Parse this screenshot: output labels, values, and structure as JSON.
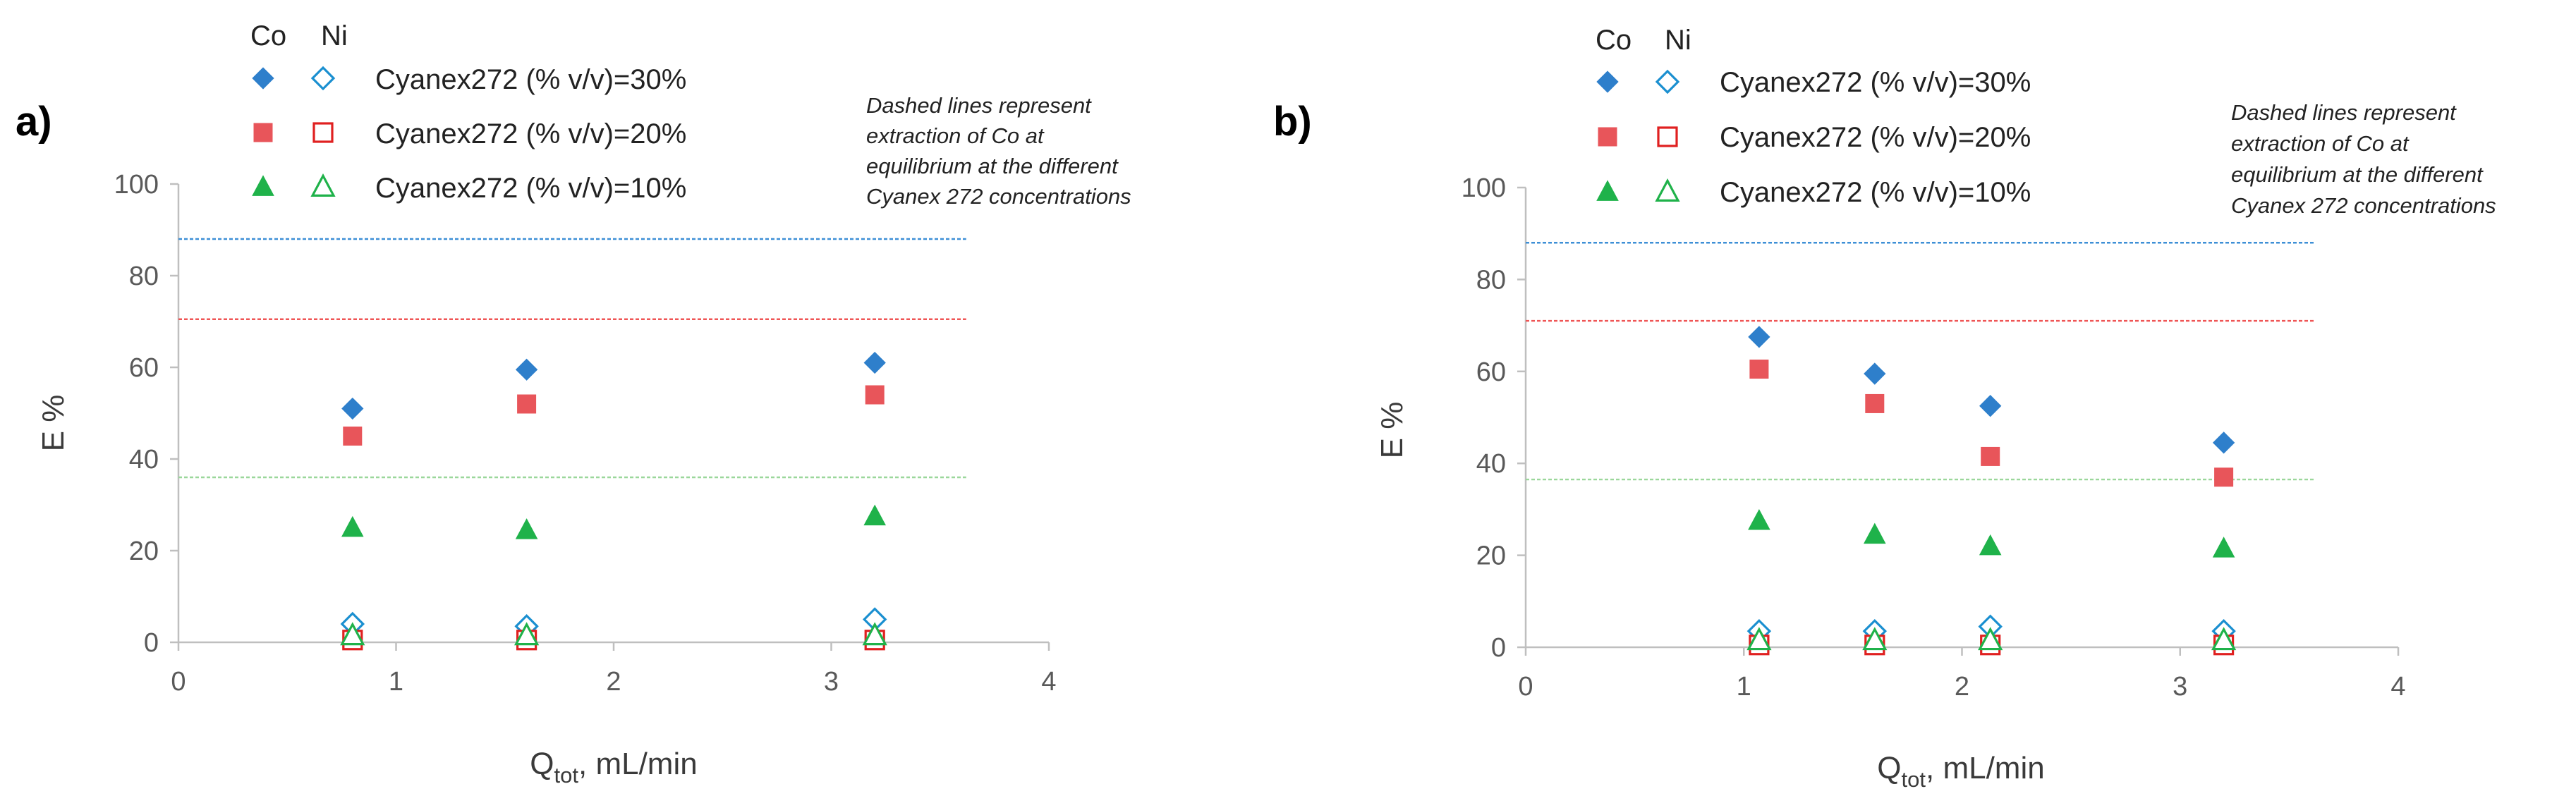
{
  "colors": {
    "c30": "#2e7fcb",
    "c20": "#e8555a",
    "c10": "#1fb24a",
    "ni30": "#1a8fd0",
    "ni20": "#e02020",
    "ni10": "#1fb24a",
    "line30": "#3d8fd6",
    "line20": "#ef5555",
    "line10": "#9bd79b",
    "axis": "#bfbfbf"
  },
  "legend": {
    "co_header": "Co",
    "ni_header": "Ni",
    "entries": [
      {
        "label": "Cyanex272 (% v/v)=30%",
        "series": "30"
      },
      {
        "label": "Cyanex272 (% v/v)=20%",
        "series": "20"
      },
      {
        "label": "Cyanex272 (% v/v)=10%",
        "series": "10"
      }
    ]
  },
  "note_lines": [
    "Dashed lines represent",
    "extraction of Co at",
    "equilibrium at the different",
    "Cyanex 272 concentrations"
  ],
  "chart_data": [
    {
      "type": "scatter",
      "panel_label": "a)",
      "xlabel_main": "Q",
      "xlabel_sub": "tot",
      "xlabel_rest": ", mL/min",
      "ylabel": "E %",
      "xlim": [
        0,
        4
      ],
      "ylim": [
        0,
        100
      ],
      "xticks": [
        0,
        1,
        2,
        3,
        4
      ],
      "yticks": [
        0,
        20,
        40,
        60,
        80,
        100
      ],
      "equilibrium_lines": [
        {
          "series": "30",
          "value": 88,
          "x_end": 3.62
        },
        {
          "series": "20",
          "value": 70.5,
          "x_end": 3.62
        },
        {
          "series": "10",
          "value": 36,
          "x_end": 3.62
        }
      ],
      "series": [
        {
          "name": "Co Cyanex272 30%",
          "key": "c30",
          "marker": "diamond",
          "filled": true,
          "x": [
            0.8,
            1.6,
            3.2
          ],
          "y": [
            51,
            59.5,
            61
          ]
        },
        {
          "name": "Co Cyanex272 20%",
          "key": "c20",
          "marker": "square",
          "filled": true,
          "x": [
            0.8,
            1.6,
            3.2
          ],
          "y": [
            45,
            52,
            54
          ]
        },
        {
          "name": "Co Cyanex272 10%",
          "key": "c10",
          "marker": "triangle",
          "filled": true,
          "x": [
            0.8,
            1.6,
            3.2
          ],
          "y": [
            25,
            24.5,
            27.5
          ]
        },
        {
          "name": "Ni Cyanex272 30%",
          "key": "ni30",
          "marker": "diamond",
          "filled": false,
          "x": [
            0.8,
            1.6,
            3.2
          ],
          "y": [
            4,
            3.5,
            5
          ]
        },
        {
          "name": "Ni Cyanex272 20%",
          "key": "ni20",
          "marker": "square",
          "filled": false,
          "x": [
            0.8,
            1.6,
            3.2
          ],
          "y": [
            0.5,
            0.5,
            0.5
          ]
        },
        {
          "name": "Ni Cyanex272 10%",
          "key": "ni10",
          "marker": "triangle",
          "filled": false,
          "x": [
            0.8,
            1.6,
            3.2
          ],
          "y": [
            1.5,
            1.5,
            1.5
          ]
        }
      ]
    },
    {
      "type": "scatter",
      "panel_label": "b)",
      "xlabel_main": "Q",
      "xlabel_sub": "tot",
      "xlabel_rest": ", mL/min",
      "ylabel": "E %",
      "xlim": [
        0,
        4
      ],
      "ylim": [
        0,
        100
      ],
      "xticks": [
        0,
        1,
        2,
        3,
        4
      ],
      "yticks": [
        0,
        20,
        40,
        60,
        80,
        100
      ],
      "equilibrium_lines": [
        {
          "series": "30",
          "value": 88,
          "x_end": 3.62
        },
        {
          "series": "20",
          "value": 71,
          "x_end": 3.62
        },
        {
          "series": "10",
          "value": 36.5,
          "x_end": 3.62
        }
      ],
      "series": [
        {
          "name": "Co Cyanex272 30%",
          "key": "c30",
          "marker": "diamond",
          "filled": true,
          "x": [
            1.07,
            1.6,
            2.13,
            3.2
          ],
          "y": [
            67.5,
            59.5,
            52.5,
            44.5
          ]
        },
        {
          "name": "Co Cyanex272 20%",
          "key": "c20",
          "marker": "square",
          "filled": true,
          "x": [
            1.07,
            1.6,
            2.13,
            3.2
          ],
          "y": [
            60.5,
            53,
            41.5,
            37
          ]
        },
        {
          "name": "Co Cyanex272 10%",
          "key": "c10",
          "marker": "triangle",
          "filled": true,
          "x": [
            1.07,
            1.6,
            2.13,
            3.2
          ],
          "y": [
            27.5,
            24.5,
            22,
            21.5
          ]
        },
        {
          "name": "Ni Cyanex272 30%",
          "key": "ni30",
          "marker": "diamond",
          "filled": false,
          "x": [
            1.07,
            1.6,
            2.13,
            3.2
          ],
          "y": [
            3.5,
            3.5,
            4.5,
            3.5
          ]
        },
        {
          "name": "Ni Cyanex272 20%",
          "key": "ni20",
          "marker": "square",
          "filled": false,
          "x": [
            1.07,
            1.6,
            2.13,
            3.2
          ],
          "y": [
            0.5,
            0.5,
            0.5,
            0.5
          ]
        },
        {
          "name": "Ni Cyanex272 10%",
          "key": "ni10",
          "marker": "triangle",
          "filled": false,
          "x": [
            1.07,
            1.6,
            2.13,
            3.2
          ],
          "y": [
            1.5,
            1.5,
            1.5,
            1.5
          ]
        }
      ]
    }
  ]
}
